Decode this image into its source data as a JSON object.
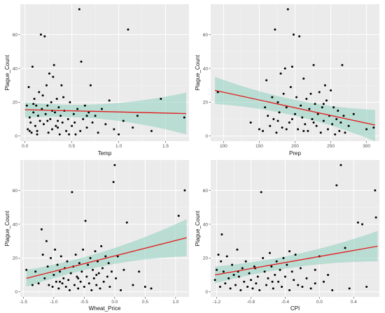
{
  "colors": {
    "panel_background": "#ebebeb",
    "grid_major": "#ffffff",
    "grid_minor": "#f4f4f4",
    "points": "#000000",
    "fit_line": "#e41a1c",
    "confidence_band": "#8fcfc0"
  },
  "chart_data": [
    {
      "type": "scatter",
      "xlabel": "Temp",
      "ylabel": "Plague_Count",
      "xlim": [
        -0.05,
        1.75
      ],
      "ylim": [
        -3,
        78
      ],
      "xticks": [
        0.0,
        0.5,
        1.0,
        1.5
      ],
      "xtick_labels": [
        "0.0",
        "0.5",
        "1.0",
        "1.5"
      ],
      "yticks": [
        0,
        20,
        40,
        60
      ],
      "ytick_labels": [
        "0",
        "20",
        "40",
        "60"
      ],
      "grid": true,
      "fit": {
        "x": [
          0.0,
          1.72
        ],
        "y": [
          15.6,
          13.3
        ],
        "ci_lower": [
          11.0,
          1.0
        ],
        "ci_upper": [
          20.0,
          25.7
        ]
      },
      "points": [
        [
          0.02,
          18
        ],
        [
          0.03,
          4
        ],
        [
          0.04,
          29
        ],
        [
          0.05,
          11
        ],
        [
          0.06,
          8
        ],
        [
          0.07,
          2
        ],
        [
          0.08,
          41
        ],
        [
          0.09,
          14
        ],
        [
          0.1,
          22
        ],
        [
          0.11,
          6
        ],
        [
          0.12,
          18
        ],
        [
          0.13,
          3
        ],
        [
          0.14,
          12
        ],
        [
          0.15,
          26
        ],
        [
          0.16,
          9
        ],
        [
          0.17,
          60
        ],
        [
          0.18,
          16
        ],
        [
          0.19,
          24
        ],
        [
          0.2,
          7
        ],
        [
          0.21,
          59
        ],
        [
          0.22,
          13
        ],
        [
          0.23,
          30
        ],
        [
          0.24,
          18
        ],
        [
          0.25,
          2
        ],
        [
          0.26,
          37
        ],
        [
          0.27,
          10
        ],
        [
          0.28,
          20
        ],
        [
          0.29,
          4
        ],
        [
          0.3,
          35
        ],
        [
          0.31,
          42
        ],
        [
          0.32,
          14
        ],
        [
          0.33,
          6
        ],
        [
          0.34,
          22
        ],
        [
          0.35,
          9
        ],
        [
          0.36,
          17
        ],
        [
          0.37,
          1
        ],
        [
          0.38,
          12
        ],
        [
          0.39,
          30
        ],
        [
          0.4,
          8
        ],
        [
          0.42,
          15
        ],
        [
          0.44,
          3
        ],
        [
          0.46,
          10
        ],
        [
          0.48,
          20
        ],
        [
          0.5,
          6
        ],
        [
          0.52,
          13
        ],
        [
          0.54,
          1
        ],
        [
          0.56,
          16
        ],
        [
          0.58,
          75
        ],
        [
          0.6,
          44
        ],
        [
          0.62,
          10
        ],
        [
          0.64,
          18
        ],
        [
          0.66,
          5
        ],
        [
          0.68,
          14
        ],
        [
          0.7,
          30
        ],
        [
          0.72,
          8
        ],
        [
          0.75,
          12
        ],
        [
          0.78,
          2
        ],
        [
          0.82,
          16
        ],
        [
          0.86,
          7
        ],
        [
          0.9,
          21
        ],
        [
          0.95,
          4
        ],
        [
          1.0,
          1
        ],
        [
          1.05,
          9
        ],
        [
          1.1,
          63
        ],
        [
          1.15,
          5
        ],
        [
          1.2,
          12
        ],
        [
          1.35,
          3
        ],
        [
          1.45,
          22
        ],
        [
          1.7,
          11
        ],
        [
          0.05,
          3
        ],
        [
          0.09,
          19
        ],
        [
          0.13,
          1
        ],
        [
          0.24,
          9
        ],
        [
          0.29,
          15
        ],
        [
          0.35,
          5
        ],
        [
          0.41,
          23
        ],
        [
          0.47,
          1
        ],
        [
          0.53,
          8
        ],
        [
          0.59,
          3
        ],
        [
          0.66,
          12
        ]
      ]
    },
    {
      "type": "scatter",
      "xlabel": "Prep",
      "ylabel": "Plague_Count",
      "xlim": [
        82,
        318
      ],
      "ylim": [
        -3,
        78
      ],
      "xticks": [
        100,
        150,
        200,
        250,
        300
      ],
      "xtick_labels": [
        "100",
        "150",
        "200",
        "250",
        "300"
      ],
      "yticks": [
        0,
        20,
        40,
        60
      ],
      "ytick_labels": [
        "0",
        "20",
        "40",
        "60"
      ],
      "grid": true,
      "fit": {
        "x": [
          88,
          312
        ],
        "y": [
          27.0,
          6.5
        ],
        "ci_lower": [
          19.0,
          -3.0
        ],
        "ci_upper": [
          35.0,
          15.5
        ]
      },
      "points": [
        [
          92,
          26
        ],
        [
          138,
          8
        ],
        [
          150,
          4
        ],
        [
          155,
          3
        ],
        [
          158,
          17
        ],
        [
          160,
          33
        ],
        [
          162,
          12
        ],
        [
          165,
          6
        ],
        [
          168,
          23
        ],
        [
          170,
          10
        ],
        [
          172,
          63
        ],
        [
          174,
          2
        ],
        [
          176,
          20
        ],
        [
          178,
          14
        ],
        [
          180,
          37
        ],
        [
          182,
          5
        ],
        [
          184,
          25
        ],
        [
          186,
          40
        ],
        [
          188,
          17
        ],
        [
          190,
          75
        ],
        [
          192,
          8
        ],
        [
          194,
          29
        ],
        [
          196,
          41
        ],
        [
          198,
          60
        ],
        [
          200,
          13
        ],
        [
          202,
          23
        ],
        [
          204,
          4
        ],
        [
          206,
          59
        ],
        [
          208,
          18
        ],
        [
          210,
          11
        ],
        [
          212,
          34
        ],
        [
          214,
          7
        ],
        [
          216,
          22
        ],
        [
          218,
          3
        ],
        [
          220,
          16
        ],
        [
          222,
          25
        ],
        [
          224,
          10
        ],
        [
          226,
          42
        ],
        [
          228,
          19
        ],
        [
          230,
          6
        ],
        [
          232,
          13
        ],
        [
          234,
          26
        ],
        [
          236,
          2
        ],
        [
          238,
          17
        ],
        [
          240,
          9
        ],
        [
          242,
          30
        ],
        [
          244,
          21
        ],
        [
          246,
          4
        ],
        [
          248,
          12
        ],
        [
          250,
          27
        ],
        [
          252,
          7
        ],
        [
          254,
          17
        ],
        [
          256,
          1
        ],
        [
          258,
          10
        ],
        [
          260,
          15
        ],
        [
          262,
          3
        ],
        [
          264,
          8
        ],
        [
          266,
          42
        ],
        [
          268,
          12
        ],
        [
          270,
          2
        ],
        [
          275,
          6
        ],
        [
          282,
          13
        ],
        [
          300,
          4
        ],
        [
          310,
          5
        ],
        [
          196,
          10
        ],
        [
          212,
          3
        ],
        [
          226,
          8
        ],
        [
          240,
          19
        ],
        [
          188,
          4
        ],
        [
          176,
          9
        ]
      ]
    },
    {
      "type": "scatter",
      "xlabel": "Wheat_Price",
      "ylabel": "Plague_Count",
      "xlim": [
        -1.55,
        1.22
      ],
      "ylim": [
        -3,
        78
      ],
      "xticks": [
        -1.5,
        -1.0,
        -0.5,
        0.0,
        0.5,
        1.0
      ],
      "xtick_labels": [
        "-1.5",
        "-1.0",
        "-0.5",
        "0.0",
        "0.5",
        "1.0"
      ],
      "yticks": [
        0,
        20,
        40,
        60
      ],
      "ytick_labels": [
        "0",
        "20",
        "40",
        "60"
      ],
      "grid": true,
      "fit": {
        "x": [
          -1.45,
          1.18
        ],
        "y": [
          8.0,
          32.0
        ],
        "ci_lower": [
          3.0,
          21.0
        ],
        "ci_upper": [
          13.0,
          43.0
        ]
      },
      "points": [
        [
          -1.45,
          13
        ],
        [
          -1.3,
          12
        ],
        [
          -1.25,
          5
        ],
        [
          -1.2,
          37
        ],
        [
          -1.18,
          22
        ],
        [
          -1.15,
          8
        ],
        [
          -1.12,
          30
        ],
        [
          -1.1,
          15
        ],
        [
          -1.08,
          4
        ],
        [
          -1.05,
          20
        ],
        [
          -1.02,
          3
        ],
        [
          -1.0,
          10
        ],
        [
          -0.98,
          25
        ],
        [
          -0.96,
          6
        ],
        [
          -0.94,
          16
        ],
        [
          -0.92,
          2
        ],
        [
          -0.9,
          12
        ],
        [
          -0.88,
          21
        ],
        [
          -0.86,
          5
        ],
        [
          -0.84,
          8
        ],
        [
          -0.82,
          14
        ],
        [
          -0.8,
          3
        ],
        [
          -0.78,
          18
        ],
        [
          -0.76,
          7
        ],
        [
          -0.74,
          1
        ],
        [
          -0.72,
          11
        ],
        [
          -0.7,
          59
        ],
        [
          -0.68,
          15
        ],
        [
          -0.66,
          4
        ],
        [
          -0.64,
          22
        ],
        [
          -0.62,
          9
        ],
        [
          -0.6,
          2
        ],
        [
          -0.58,
          17
        ],
        [
          -0.56,
          6
        ],
        [
          -0.54,
          12
        ],
        [
          -0.52,
          25
        ],
        [
          -0.5,
          3
        ],
        [
          -0.48,
          42
        ],
        [
          -0.46,
          9
        ],
        [
          -0.44,
          16
        ],
        [
          -0.42,
          5
        ],
        [
          -0.4,
          20
        ],
        [
          -0.38,
          1
        ],
        [
          -0.36,
          13
        ],
        [
          -0.34,
          8
        ],
        [
          -0.32,
          24
        ],
        [
          -0.3,
          4
        ],
        [
          -0.28,
          18
        ],
        [
          -0.26,
          11
        ],
        [
          -0.24,
          2
        ],
        [
          -0.22,
          27
        ],
        [
          -0.2,
          14
        ],
        [
          -0.18,
          6
        ],
        [
          -0.15,
          21
        ],
        [
          -0.12,
          9
        ],
        [
          -0.1,
          17
        ],
        [
          -0.08,
          3
        ],
        [
          -0.05,
          12
        ],
        [
          -0.02,
          65
        ],
        [
          0.0,
          75
        ],
        [
          0.02,
          8
        ],
        [
          0.05,
          21
        ],
        [
          0.1,
          1
        ],
        [
          0.15,
          13
        ],
        [
          0.2,
          41
        ],
        [
          0.3,
          4
        ],
        [
          0.4,
          12
        ],
        [
          0.5,
          3
        ],
        [
          0.6,
          2
        ],
        [
          1.05,
          45
        ],
        [
          1.15,
          60
        ],
        [
          -1.35,
          4
        ],
        [
          -0.9,
          6
        ],
        [
          -0.6,
          8
        ],
        [
          -0.3,
          10
        ]
      ]
    },
    {
      "type": "scatter",
      "xlabel": "CPI",
      "ylabel": "Plague_Count",
      "xlim": [
        -1.27,
        0.7
      ],
      "ylim": [
        -3,
        78
      ],
      "xticks": [
        -1.2,
        -0.8,
        -0.4,
        0.0,
        0.4
      ],
      "xtick_labels": [
        "-1.2",
        "-0.8",
        "-0.4",
        "0.0",
        "0.4"
      ],
      "yticks": [
        0,
        20,
        40,
        60
      ],
      "ytick_labels": [
        "0",
        "20",
        "40",
        "60"
      ],
      "grid": true,
      "fit": {
        "x": [
          -1.22,
          0.68
        ],
        "y": [
          10.0,
          27.0
        ],
        "ci_lower": [
          5.0,
          18.0
        ],
        "ci_upper": [
          15.0,
          36.0
        ]
      },
      "points": [
        [
          -1.22,
          7
        ],
        [
          -1.2,
          13
        ],
        [
          -1.18,
          22
        ],
        [
          -1.16,
          3
        ],
        [
          -1.14,
          34
        ],
        [
          -1.12,
          12
        ],
        [
          -1.1,
          5
        ],
        [
          -1.08,
          21
        ],
        [
          -1.06,
          8
        ],
        [
          -1.04,
          2
        ],
        [
          -1.02,
          16
        ],
        [
          -1.0,
          10
        ],
        [
          -0.98,
          4
        ],
        [
          -0.96,
          25
        ],
        [
          -0.94,
          9
        ],
        [
          -0.92,
          1
        ],
        [
          -0.9,
          14
        ],
        [
          -0.88,
          6
        ],
        [
          -0.86,
          18
        ],
        [
          -0.84,
          3
        ],
        [
          -0.82,
          11
        ],
        [
          -0.8,
          7
        ],
        [
          -0.78,
          2
        ],
        [
          -0.76,
          15
        ],
        [
          -0.74,
          5
        ],
        [
          -0.72,
          9
        ],
        [
          -0.7,
          1
        ],
        [
          -0.68,
          59
        ],
        [
          -0.66,
          20
        ],
        [
          -0.64,
          12
        ],
        [
          -0.62,
          4
        ],
        [
          -0.6,
          8
        ],
        [
          -0.58,
          23
        ],
        [
          -0.56,
          15
        ],
        [
          -0.54,
          2
        ],
        [
          -0.52,
          10
        ],
        [
          -0.5,
          18
        ],
        [
          -0.48,
          6
        ],
        [
          -0.46,
          13
        ],
        [
          -0.44,
          3
        ],
        [
          -0.42,
          20
        ],
        [
          -0.4,
          9
        ],
        [
          -0.38,
          16
        ],
        [
          -0.35,
          1
        ],
        [
          -0.32,
          12
        ],
        [
          -0.3,
          7
        ],
        [
          -0.28,
          22
        ],
        [
          -0.25,
          4
        ],
        [
          -0.22,
          14
        ],
        [
          -0.2,
          3
        ],
        [
          -0.15,
          8
        ],
        [
          -0.1,
          2
        ],
        [
          -0.05,
          13
        ],
        [
          0.0,
          21
        ],
        [
          0.05,
          6
        ],
        [
          0.1,
          10
        ],
        [
          0.15,
          1
        ],
        [
          0.2,
          63
        ],
        [
          0.25,
          75
        ],
        [
          0.3,
          26
        ],
        [
          0.35,
          2
        ],
        [
          0.45,
          41
        ],
        [
          0.5,
          40
        ],
        [
          0.55,
          3
        ],
        [
          0.65,
          60
        ],
        [
          0.66,
          44
        ],
        [
          -1.15,
          18
        ],
        [
          -0.95,
          12
        ],
        [
          -0.75,
          14
        ],
        [
          -0.55,
          6
        ],
        [
          -0.35,
          24
        ],
        [
          -0.05,
          5
        ]
      ]
    }
  ]
}
